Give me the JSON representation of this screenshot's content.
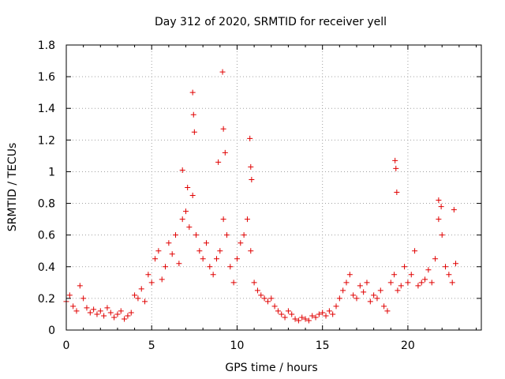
{
  "chart_data": {
    "type": "scatter",
    "title": "Day 312 of 2020, SRMTID for receiver yell",
    "xlabel": "GPS time / hours",
    "ylabel": "SRMTID / TECUs",
    "xlim": [
      0,
      24.3
    ],
    "ylim": [
      0,
      1.8
    ],
    "x_ticks": [
      0,
      5,
      10,
      15,
      20
    ],
    "x_tick_labels": [
      "0",
      "5",
      "10",
      "15",
      "20"
    ],
    "y_ticks": [
      0,
      0.2,
      0.4,
      0.6,
      0.8,
      1.0,
      1.2,
      1.4,
      1.6,
      1.8
    ],
    "y_tick_labels": [
      "0",
      "0.2",
      "0.4",
      "0.6",
      "0.8",
      "1",
      "1.2",
      "1.4",
      "1.6",
      "1.8"
    ],
    "grid": true,
    "marker": "+",
    "series": [
      {
        "name": "SRMTID",
        "color": "#e00000",
        "x": [
          0.0,
          0.2,
          0.4,
          0.6,
          0.8,
          1.0,
          1.2,
          1.4,
          1.6,
          1.8,
          2.0,
          2.2,
          2.4,
          2.6,
          2.8,
          3.0,
          3.2,
          3.4,
          3.6,
          3.8,
          4.0,
          4.2,
          4.4,
          4.6,
          4.8,
          5.0,
          5.2,
          5.4,
          5.6,
          5.8,
          6.0,
          6.2,
          6.4,
          6.6,
          6.8,
          7.0,
          7.2,
          7.4,
          7.6,
          7.8,
          8.0,
          8.2,
          8.4,
          8.6,
          8.8,
          9.0,
          9.2,
          9.4,
          9.6,
          9.8,
          10.0,
          10.2,
          10.4,
          10.6,
          10.8,
          11.0,
          11.2,
          11.4,
          11.6,
          11.8,
          12.0,
          12.2,
          12.4,
          12.6,
          12.8,
          13.0,
          13.2,
          13.4,
          13.6,
          13.8,
          14.0,
          14.2,
          14.4,
          14.6,
          14.8,
          15.0,
          15.2,
          15.4,
          15.6,
          15.8,
          16.0,
          16.2,
          16.4,
          16.6,
          16.8,
          17.0,
          17.2,
          17.4,
          17.6,
          17.8,
          18.0,
          18.2,
          18.4,
          18.6,
          18.8,
          19.0,
          19.2,
          19.4,
          19.6,
          19.8,
          20.0,
          20.2,
          20.4,
          20.6,
          20.8,
          21.0,
          21.2,
          21.4,
          21.6,
          21.8,
          22.0,
          22.2,
          22.4,
          22.6,
          22.8,
          7.4,
          7.45,
          7.5,
          9.15,
          9.2,
          9.3,
          10.75,
          10.8,
          10.85,
          19.25,
          19.3,
          19.35,
          6.8,
          7.1,
          8.9,
          21.8,
          21.95,
          22.7
        ],
        "values": [
          0.18,
          0.22,
          0.15,
          0.12,
          0.28,
          0.2,
          0.14,
          0.11,
          0.13,
          0.1,
          0.12,
          0.09,
          0.14,
          0.11,
          0.08,
          0.1,
          0.12,
          0.07,
          0.09,
          0.11,
          0.22,
          0.2,
          0.26,
          0.18,
          0.35,
          0.3,
          0.45,
          0.5,
          0.32,
          0.4,
          0.55,
          0.48,
          0.6,
          0.42,
          0.7,
          0.75,
          0.65,
          0.85,
          0.6,
          0.5,
          0.45,
          0.55,
          0.4,
          0.35,
          0.45,
          0.5,
          0.7,
          0.6,
          0.4,
          0.3,
          0.45,
          0.55,
          0.6,
          0.7,
          0.5,
          0.3,
          0.25,
          0.22,
          0.2,
          0.18,
          0.2,
          0.15,
          0.12,
          0.1,
          0.08,
          0.12,
          0.1,
          0.07,
          0.06,
          0.08,
          0.07,
          0.06,
          0.09,
          0.08,
          0.1,
          0.11,
          0.09,
          0.12,
          0.1,
          0.15,
          0.2,
          0.25,
          0.3,
          0.35,
          0.22,
          0.2,
          0.28,
          0.24,
          0.3,
          0.18,
          0.22,
          0.2,
          0.25,
          0.15,
          0.12,
          0.3,
          0.35,
          0.25,
          0.28,
          0.4,
          0.3,
          0.35,
          0.5,
          0.28,
          0.3,
          0.32,
          0.38,
          0.3,
          0.45,
          0.7,
          0.6,
          0.4,
          0.35,
          0.3,
          0.42,
          1.5,
          1.36,
          1.25,
          1.63,
          1.27,
          1.12,
          1.21,
          1.03,
          0.95,
          1.07,
          1.02,
          0.87,
          1.01,
          0.9,
          1.06,
          0.82,
          0.78,
          0.76
        ]
      }
    ]
  }
}
